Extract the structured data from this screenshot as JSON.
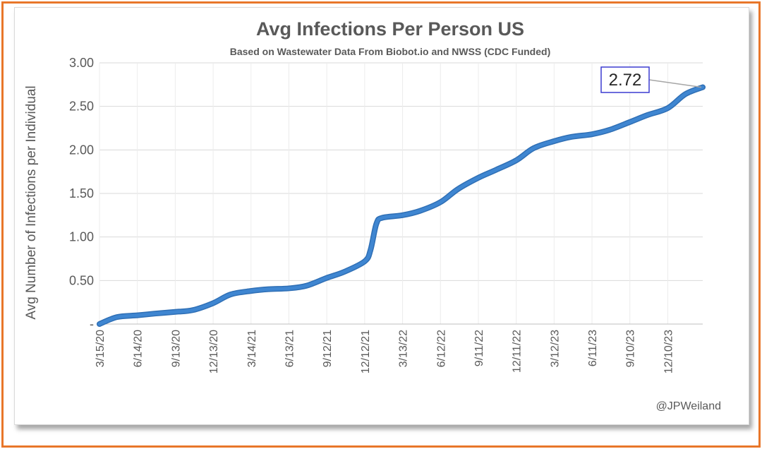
{
  "chart_data": {
    "type": "line",
    "title": "Avg Infections Per Person US",
    "subtitle": "Based on Wastewater Data From Biobot.io and NWSS (CDC Funded)",
    "y_label": "Avg Number of Infections per Individual",
    "credit": "@JPWeiland",
    "x": [
      "3/15/20",
      "4/26/20",
      "6/14/20",
      "7/26/20",
      "9/13/20",
      "10/25/20",
      "12/13/20",
      "1/24/21",
      "3/14/21",
      "4/25/21",
      "6/13/21",
      "7/25/21",
      "9/12/21",
      "10/24/21",
      "12/12/21",
      "12/26/21",
      "1/9/22",
      "1/23/22",
      "3/13/22",
      "4/24/22",
      "6/12/22",
      "7/24/22",
      "9/11/22",
      "10/23/22",
      "12/11/22",
      "1/22/23",
      "3/12/23",
      "4/23/23",
      "6/11/23",
      "7/23/23",
      "9/10/23",
      "10/22/23",
      "12/10/23",
      "1/21/24",
      "3/3/24"
    ],
    "values": [
      0.0,
      0.08,
      0.1,
      0.12,
      0.14,
      0.16,
      0.24,
      0.34,
      0.38,
      0.4,
      0.41,
      0.44,
      0.53,
      0.6,
      0.72,
      0.85,
      1.15,
      1.22,
      1.25,
      1.3,
      1.4,
      1.55,
      1.68,
      1.77,
      1.88,
      2.02,
      2.1,
      2.15,
      2.18,
      2.23,
      2.32,
      2.4,
      2.48,
      2.64,
      2.72
    ],
    "color": "#3f86d1",
    "xticks": [
      "3/15/20",
      "6/14/20",
      "9/13/20",
      "12/13/20",
      "3/14/21",
      "6/13/21",
      "9/12/21",
      "12/12/21",
      "3/13/22",
      "6/12/22",
      "9/11/22",
      "12/11/22",
      "3/12/23",
      "6/11/23",
      "9/10/23",
      "12/10/23"
    ],
    "ylim": [
      0,
      3
    ],
    "yticks": [
      {
        "value": 0,
        "label": "-"
      },
      {
        "value": 0.5,
        "label": "0.50"
      },
      {
        "value": 1,
        "label": "1.00"
      },
      {
        "value": 1.5,
        "label": "1.50"
      },
      {
        "value": 2,
        "label": "2.00"
      },
      {
        "value": 2.5,
        "label": "2.50"
      },
      {
        "value": 3,
        "label": "3.00"
      }
    ],
    "grid": true
  }
}
